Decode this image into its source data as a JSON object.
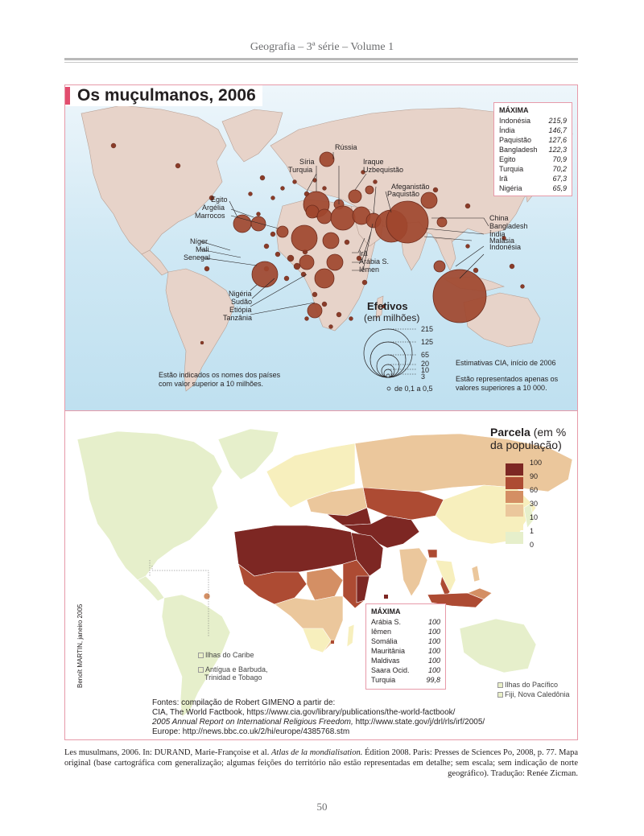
{
  "page": {
    "running_head": "Geografia – 3ª série – Volume 1",
    "page_number": "50",
    "caption_1": "Les musulmans, 2006. In: DURAND, Marie-Françoise et al. ",
    "caption_italic": "Atlas de la mondialisation.",
    "caption_2": " Édition 2008. Paris: Presses de Sciences Po, 2008, p. 77. Mapa original (base cartográfica com generalização; algumas feições do território não estão representadas em detalhe; sem escala; sem indicação de norte geográfico). Tradução: Renée Zicman."
  },
  "colors": {
    "accent": "#e24d6e",
    "frame": "#e79aa9",
    "ocean_top": "#cfe8f4",
    "land": "#e7d3c9",
    "circle": "#a0462e"
  },
  "map1": {
    "title": "Os muçulmanos, 2006",
    "maxima": {
      "heading": "MÁXIMA",
      "rows": [
        {
          "country": "Indonésia",
          "value": "215,9"
        },
        {
          "country": "Índia",
          "value": "146,7"
        },
        {
          "country": "Paquistão",
          "value": "127,6"
        },
        {
          "country": "Bangladesh",
          "value": "122,3"
        },
        {
          "country": "Egito",
          "value": "70,9"
        },
        {
          "country": "Turquia",
          "value": "70,2"
        },
        {
          "country": "Irã",
          "value": "67,3"
        },
        {
          "country": "Nigéria",
          "value": "65,9"
        }
      ]
    },
    "labels": {
      "russia": "Rússia",
      "siria": "Síria",
      "turquia": "Turquia",
      "iraque": "Iraque",
      "uzbequistao": "Uzbequistão",
      "afeganistao": "Afeganistão",
      "paquistao": "Paquistão",
      "egito": "Egito",
      "argelia": "Argélia",
      "marrocos": "Marrocos",
      "china": "China",
      "bangladesh": "Bangladesh",
      "india": "Índia",
      "malasia": "Malásia",
      "indonesia": "Indonésia",
      "niger": "Níger",
      "mali": "Mali",
      "senegal": "Senegal",
      "ira": "Irã",
      "arabia": "Arábia S.",
      "iemen": "Iêmen",
      "nigeria": "Nigéria",
      "sudao": "Sudão",
      "etiopia": "Etiópia",
      "tanzania": "Tanzânia"
    },
    "note_left": "Estão indicados os nomes dos países com valor superior a 10 milhões.",
    "note_right_1": "Estimativas CIA, início de 2006",
    "note_right_2": "Estão representados apenas os valores superiores a 10 000.",
    "legend": {
      "title": "Efetivos",
      "subtitle": "(em milhões)",
      "values": [
        "215",
        "125",
        "65",
        "20",
        "10",
        "3"
      ],
      "small": "de 0,1 a 0,5"
    }
  },
  "map2": {
    "legend_title_bold": "Parcela",
    "legend_title_rest": " (em %",
    "legend_title_line2": "da população)",
    "scale_values": [
      "100",
      "90",
      "60",
      "30",
      "10",
      "1",
      "0"
    ],
    "scale_colors": [
      "#7d2723",
      "#ad4b33",
      "#d48f64",
      "#ebc79c",
      "#f7efbd",
      "#e6efcb"
    ],
    "maxima": {
      "heading": "MÁXIMA",
      "rows": [
        {
          "country": "Arábia S.",
          "value": "100"
        },
        {
          "country": "Iêmen",
          "value": "100"
        },
        {
          "country": "Somália",
          "value": "100"
        },
        {
          "country": "Mauritânia",
          "value": "100"
        },
        {
          "country": "Maldivas",
          "value": "100"
        },
        {
          "country": "Saara Ocid.",
          "value": "100"
        },
        {
          "country": "Turquia",
          "value": "99,8"
        }
      ]
    },
    "islands": {
      "caribe": "Ilhas do Caribe",
      "antigua_1": "Antígua e Barbuda,",
      "antigua_2": "Trinidad e Tobago",
      "pacifico": "Ilhas do Pacífico",
      "fiji": "Fiji, Nova Caledônia"
    },
    "credit": "Benoît MARTIN, janeiro 2005",
    "sources": {
      "line1": "Fontes: compilação de Robert GIMENO a partir de:",
      "line2": "CIA, The World Factbook, https://www.cia.gov/library/publications/the-world-factbook/",
      "line3_italic": "2005 Annual Report on International Religious Freedom,",
      "line3_rest": " http://www.state.gov/j/drl/rls/irf/2005/",
      "line4": "Europe: http://news.bbc.co.uk/2/hi/europe/4385768.stm"
    }
  }
}
